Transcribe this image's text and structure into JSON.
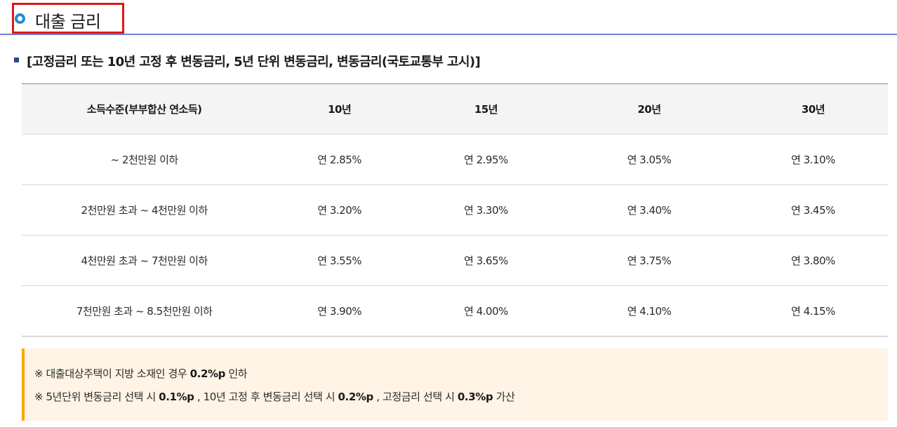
{
  "section_title": "대출 금리",
  "subheading": "[고정금리 또는 10년 고정 후 변동금리, 5년 단위 변동금리, 변동금리(국토교통부 고시)]",
  "table": {
    "headers": [
      "소득수준(부부합산 연소득)",
      "10년",
      "15년",
      "20년",
      "30년"
    ],
    "rows": [
      [
        "~ 2천만원 이하",
        "연 2.85%",
        "연 2.95%",
        "연 3.05%",
        "연 3.10%"
      ],
      [
        "2천만원 초과 ~ 4천만원 이하",
        "연 3.20%",
        "연 3.30%",
        "연 3.40%",
        "연 3.45%"
      ],
      [
        "4천만원 초과 ~ 7천만원 이하",
        "연 3.55%",
        "연 3.65%",
        "연 3.75%",
        "연 3.80%"
      ],
      [
        "7천만원 초과 ~ 8.5천만원 이하",
        "연 3.90%",
        "연 4.00%",
        "연 4.10%",
        "연 4.15%"
      ]
    ]
  },
  "notes": {
    "note1": {
      "prefix": "※ 대출대상주택이 지방 소재인 경우 ",
      "value": "0.2%p",
      "suffix": " 인하"
    },
    "note2": {
      "p1": "※ 5년단위 변동금리 선택 시 ",
      "v1": "0.1%p",
      "p2": " , 10년 고정 후 변동금리 선택 시 ",
      "v2": "0.2%p",
      "p3": " , 고정금리 선택 시 ",
      "v3": "0.3%p",
      "p4": " 가산"
    }
  },
  "colors": {
    "title_frame": "#e01818",
    "title_ring": "#1e8fd0",
    "title_rule": "#6f7fcf",
    "bullet": "#2b4a85",
    "header_bg": "#f4f4f4",
    "note_bg": "#fff4e5",
    "note_accent": "#f5a800"
  }
}
